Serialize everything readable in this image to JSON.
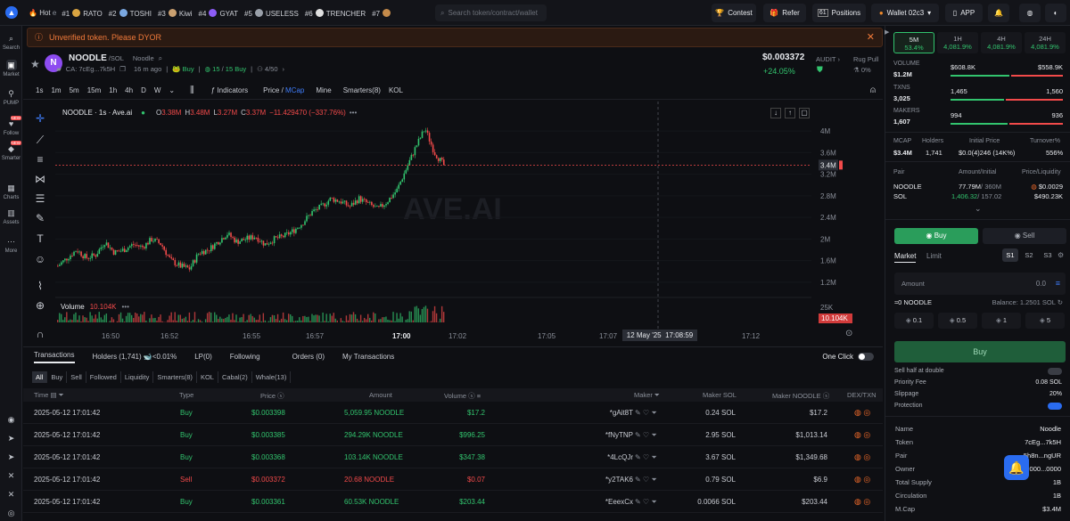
{
  "topbar": {
    "hot_label": "Hot",
    "hot_items": [
      {
        "rank": "#1",
        "name": "RATO",
        "color": "#d9a441"
      },
      {
        "rank": "#2",
        "name": "TOSHI",
        "color": "#7aa7e0"
      },
      {
        "rank": "#3",
        "name": "Kiwi",
        "color": "#caa070"
      },
      {
        "rank": "#4",
        "name": "GYAT",
        "color": "#8d5cf6"
      },
      {
        "rank": "#5",
        "name": "USELESS",
        "color": "#9aa0a9"
      },
      {
        "rank": "#6",
        "name": "TRENCHER",
        "color": "#e0e0e0"
      },
      {
        "rank": "#7",
        "name": "",
        "color": "#c48a4a"
      }
    ],
    "search_placeholder": "Search token/contract/wallet",
    "contest": "Contest",
    "refer": "Refer",
    "positions_count": "61",
    "positions": "Positions",
    "wallet": "Wallet 02c3",
    "app": "APP"
  },
  "leftnav": [
    {
      "label": "Search",
      "icon": "search-icon"
    },
    {
      "label": "Market",
      "icon": "market-icon",
      "active": true
    },
    {
      "label": "PUMP",
      "icon": "pump-icon"
    },
    {
      "label": "Follow",
      "icon": "follow-icon",
      "badge": "NEW"
    },
    {
      "label": "Smarter",
      "icon": "smarter-icon",
      "badge": "NEW"
    },
    {
      "label": "Charts",
      "icon": "charts-icon"
    },
    {
      "label": "Assets",
      "icon": "assets-icon"
    },
    {
      "label": "More",
      "icon": "more-icon"
    }
  ],
  "warning": "Unverified token. Please DYOR",
  "token": {
    "avatar_letter": "N",
    "symbol": "NOODLE",
    "pair": "/SOL",
    "name": "Noodle",
    "ca": "CA: 7cEg...7k5H",
    "age": "16 m ago",
    "buy_tag": "Buy",
    "buy_count": "15",
    "buy_total": "15 Buy",
    "holders_ratio": "4/50",
    "price": "$0.003372",
    "change": "+24.05%",
    "audit": "AUDIT",
    "rug_pull": "Rug Pull",
    "rug_value": "0%"
  },
  "chart_tools": {
    "timeframes": [
      "1s",
      "1m",
      "5m",
      "15m",
      "1h",
      "4h",
      "D",
      "W"
    ],
    "indicators": "Indicators",
    "price": "Price",
    "mcap": "MCap",
    "mine": "Mine",
    "smarters": "Smarters(8)",
    "kol": "KOL"
  },
  "chart_legend": {
    "title": "NOODLE · 1s · Ave.ai",
    "o": "3.38M",
    "h": "3.48M",
    "l": "3.27M",
    "c": "3.37M",
    "change": "−11.429470 (−337.76%)",
    "volume_label": "Volume",
    "volume_value": "10.104K",
    "watermark": "AVE.AI",
    "cursor_date": "12 May '25",
    "cursor_time": "17:08:59"
  },
  "chart_data": {
    "type": "candlestick",
    "x_ticks": [
      "16:50",
      "16:52",
      "16:55",
      "16:57",
      "17:00",
      "17:02",
      "17:05",
      "17:07",
      "17:10",
      "17:12"
    ],
    "y_ticks": [
      "4M",
      "3.6M",
      "3.2M",
      "2.8M",
      "2.4M",
      "2M",
      "1.6M",
      "1.2M"
    ],
    "last_value": "3.4M",
    "volume_tick": "25K",
    "volume_last": "10.104K",
    "trend": [
      1.5,
      1.65,
      1.8,
      1.65,
      1.7,
      1.95,
      1.75,
      1.8,
      1.9,
      1.85,
      2.0,
      1.9,
      1.6,
      1.5,
      1.45,
      1.75,
      1.8,
      1.95,
      2.1,
      1.95,
      2.0,
      2.05,
      1.9,
      2.0,
      2.05,
      2.15,
      2.3,
      2.5,
      2.6,
      2.75,
      2.7,
      2.6,
      2.75,
      2.65,
      2.55,
      2.7,
      2.9,
      3.3,
      3.7,
      4.05,
      3.6,
      3.37
    ]
  },
  "bottom_tabs": {
    "transactions": "Transactions",
    "holders": "Holders (1,741)",
    "holders_pct": "<0.01%",
    "lp": "LP(0)",
    "following": "Following",
    "orders": "Orders (0)",
    "my_tx": "My Transactions",
    "one_click": "One Click"
  },
  "filters": [
    "All",
    "Buy",
    "Sell",
    "Followed",
    "Liquidity",
    "Smarters(8)",
    "KOL",
    "Cabal(2)",
    "Whale(13)"
  ],
  "table": {
    "headers": {
      "time": "Time",
      "type": "Type",
      "price": "Price",
      "amount": "Amount",
      "volume": "Volume",
      "maker": "Maker",
      "maker_sol": "Maker SOL",
      "maker_noodle": "Maker NOODLE",
      "dex": "DEX/TXN"
    },
    "rows": [
      {
        "time": "2025-05-12 17:01:42",
        "type": "Buy",
        "price": "$0.003398",
        "amount": "5,059.95 NOODLE",
        "volume": "$17.2",
        "maker": "*gAit8T",
        "maker_sol": "0.24 SOL",
        "maker_noodle": "$17.2"
      },
      {
        "time": "2025-05-12 17:01:42",
        "type": "Buy",
        "price": "$0.003385",
        "amount": "294.29K NOODLE",
        "volume": "$996.25",
        "maker": "*fNyTNP",
        "maker_sol": "2.95 SOL",
        "maker_noodle": "$1,013.14"
      },
      {
        "time": "2025-05-12 17:01:42",
        "type": "Buy",
        "price": "$0.003368",
        "amount": "103.14K NOODLE",
        "volume": "$347.38",
        "maker": "*4LcQJr",
        "maker_sol": "3.67 SOL",
        "maker_noodle": "$1,349.68"
      },
      {
        "time": "2025-05-12 17:01:42",
        "type": "Sell",
        "price": "$0.003372",
        "amount": "20.68 NOODLE",
        "volume": "$0.07",
        "maker": "*y2TAK6",
        "maker_sol": "0.79 SOL",
        "maker_noodle": "$6.9"
      },
      {
        "time": "2025-05-12 17:01:42",
        "type": "Buy",
        "price": "$0.003361",
        "amount": "60.53K NOODLE",
        "volume": "$203.44",
        "maker": "*EeexCx",
        "maker_sol": "0.0066 SOL",
        "maker_noodle": "$203.44"
      }
    ]
  },
  "right": {
    "periods": [
      {
        "label": "5M",
        "pct": "53.4%",
        "active": true
      },
      {
        "label": "1H",
        "pct": "4,081.9%"
      },
      {
        "label": "4H",
        "pct": "4,081.9%"
      },
      {
        "label": "24H",
        "pct": "4,081.9%"
      }
    ],
    "volume_label": "VOLUME",
    "volume": "$1.2M",
    "vol_buy": "$608.8K",
    "vol_sell": "$558.9K",
    "txns_label": "TXNS",
    "txns": "3,025",
    "tx_buy": "1,465",
    "tx_sell": "1,560",
    "makers_label": "MAKERS",
    "makers": "1,607",
    "mk_buy": "994",
    "mk_sell": "936",
    "mcap_label": "MCAP",
    "mcap": "$3.4M",
    "holders_label": "Holders",
    "holders": "1,741",
    "initial_label": "Initial Price",
    "initial": "$0.0(4)246 (14K%)",
    "turnover_label": "Turnover%",
    "turnover": "556%",
    "pair_label": "Pair",
    "amount_label": "Amount/Initial",
    "price_liq_label": "Price/Liquidity",
    "pair1": "NOODLE",
    "pair1_amt": "77.79M",
    "pair1_init": "/ 360M",
    "pair1_price": "$0.0029",
    "pair2": "SOL",
    "pair2_amt": "1,406.32",
    "pair2_init": "/ 157.02",
    "pair2_liq": "$490.23K",
    "buy_tab": "Buy",
    "sell_tab": "Sell",
    "market": "Market",
    "limit": "Limit",
    "s1": "S1",
    "s2": "S2",
    "s3": "S3",
    "amount_ph": "Amount",
    "amount_val": "0.0",
    "holding": "≈0 NOODLE",
    "balance": "Balance: 1.2501 SOL",
    "quick": [
      "0.1",
      "0.5",
      "1",
      "5"
    ],
    "buy_btn": "Buy",
    "sell_half": "Sell half at double",
    "priority_fee": "Priority Fee",
    "priority_val": "0.08 SOL",
    "slippage": "Slippage",
    "slippage_val": "20%",
    "protection": "Protection",
    "info": [
      {
        "k": "Name",
        "v": "Noodle"
      },
      {
        "k": "Token",
        "v": "7cEg...7k5H"
      },
      {
        "k": "Pair",
        "v": "5h8n...ngUR"
      },
      {
        "k": "Owner",
        "v": "000...0000"
      },
      {
        "k": "Total Supply",
        "v": "1B"
      },
      {
        "k": "Circulation",
        "v": "1B"
      },
      {
        "k": "M.Cap",
        "v": "$3.4M"
      }
    ]
  }
}
